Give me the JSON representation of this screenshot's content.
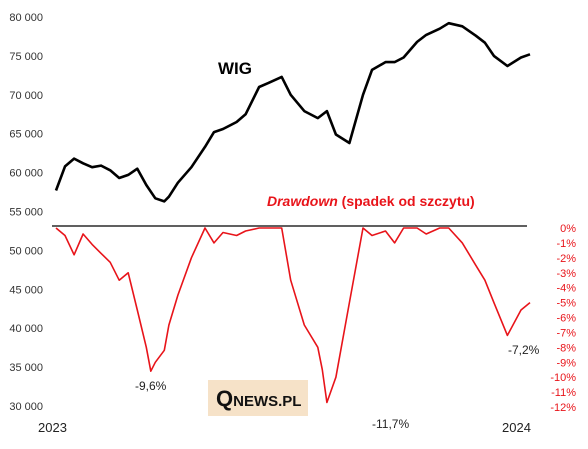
{
  "chart_data": {
    "type": "line",
    "x_labels": [
      "2023",
      "2024"
    ],
    "left_axis": {
      "ticks": [
        30000,
        35000,
        40000,
        45000,
        50000,
        55000,
        60000,
        65000,
        70000,
        75000,
        80000
      ],
      "tick_labels": [
        "30 000",
        "35 000",
        "40 000",
        "45 000",
        "50 000",
        "55 000",
        "60 000",
        "65 000",
        "70 000",
        "75 000",
        "80 000"
      ],
      "ylim": [
        30000,
        80000
      ]
    },
    "right_axis": {
      "ticks": [
        0,
        -1,
        -2,
        -3,
        -4,
        -5,
        -6,
        -7,
        -8,
        -9,
        -10,
        -11,
        -12
      ],
      "tick_labels": [
        "0%",
        "-1%",
        "-2%",
        "-3%",
        "-4%",
        "-5%",
        "-6%",
        "-7%",
        "-8%",
        "-9%",
        "-10%",
        "-11%",
        "-12%"
      ],
      "ylim": [
        -12,
        0
      ]
    },
    "grid": false,
    "series": [
      {
        "name": "WIG",
        "color": "#000000",
        "axis": "left",
        "x": [
          0,
          2,
          4,
          6,
          8,
          10,
          12,
          14,
          16,
          18,
          20,
          22,
          24,
          25,
          27,
          30,
          33,
          35,
          37,
          40,
          42,
          45,
          47,
          50,
          52,
          55,
          58,
          60,
          62,
          65,
          68,
          70,
          73,
          75,
          77,
          80,
          82,
          85,
          87,
          90,
          93,
          95,
          97,
          100,
          103,
          105
        ],
        "values": [
          57700,
          60800,
          61800,
          61200,
          60700,
          60900,
          60300,
          59300,
          59700,
          60500,
          58400,
          56700,
          56300,
          56900,
          58700,
          60700,
          63300,
          65200,
          65600,
          66500,
          67500,
          71000,
          71500,
          72300,
          70000,
          67900,
          67000,
          67900,
          64900,
          63800,
          70000,
          73200,
          74200,
          74200,
          74800,
          76800,
          77700,
          78500,
          79200,
          78800,
          77600,
          76700,
          75000,
          73700,
          74800,
          75200
        ]
      },
      {
        "name": "Drawdown (spadek od szczytu)",
        "color": "#e8141a",
        "axis": "right",
        "x": [
          0,
          2,
          4,
          6,
          8,
          10,
          12,
          14,
          16,
          18,
          20,
          21,
          22,
          24,
          25,
          27,
          30,
          33,
          35,
          37,
          40,
          42,
          45,
          47,
          50,
          52,
          55,
          58,
          59,
          60,
          62,
          65,
          68,
          70,
          73,
          75,
          77,
          80,
          82,
          85,
          87,
          90,
          93,
          95,
          97,
          100,
          103,
          105
        ],
        "values": [
          0,
          -0.5,
          -1.8,
          -0.4,
          -1.1,
          -1.7,
          -2.3,
          -3.5,
          -3.0,
          -5.5,
          -8.0,
          -9.6,
          -9.0,
          -8.2,
          -6.5,
          -4.5,
          -2.0,
          0,
          -1.0,
          -0.3,
          -0.5,
          -0.2,
          0,
          0,
          0,
          -3.5,
          -6.5,
          -8.0,
          -9.5,
          -11.7,
          -10.0,
          -5.0,
          0,
          -0.5,
          -0.2,
          -1.0,
          0,
          0,
          -0.4,
          0,
          0,
          -1.0,
          -2.5,
          -3.5,
          -5.0,
          -7.2,
          -5.5,
          -5.0
        ]
      }
    ],
    "annotations": [
      "-9,6%",
      "-11,7%",
      "-7,2%"
    ],
    "title": "WIG",
    "subtitle_prefix": "Drawdown",
    "subtitle_rest": " (spadek od szczytu)",
    "logo": "QNEWS.PL"
  },
  "colors": {
    "wig": "#000000",
    "drawdown": "#e8141a",
    "logo_bg": "#f6e2c8"
  }
}
